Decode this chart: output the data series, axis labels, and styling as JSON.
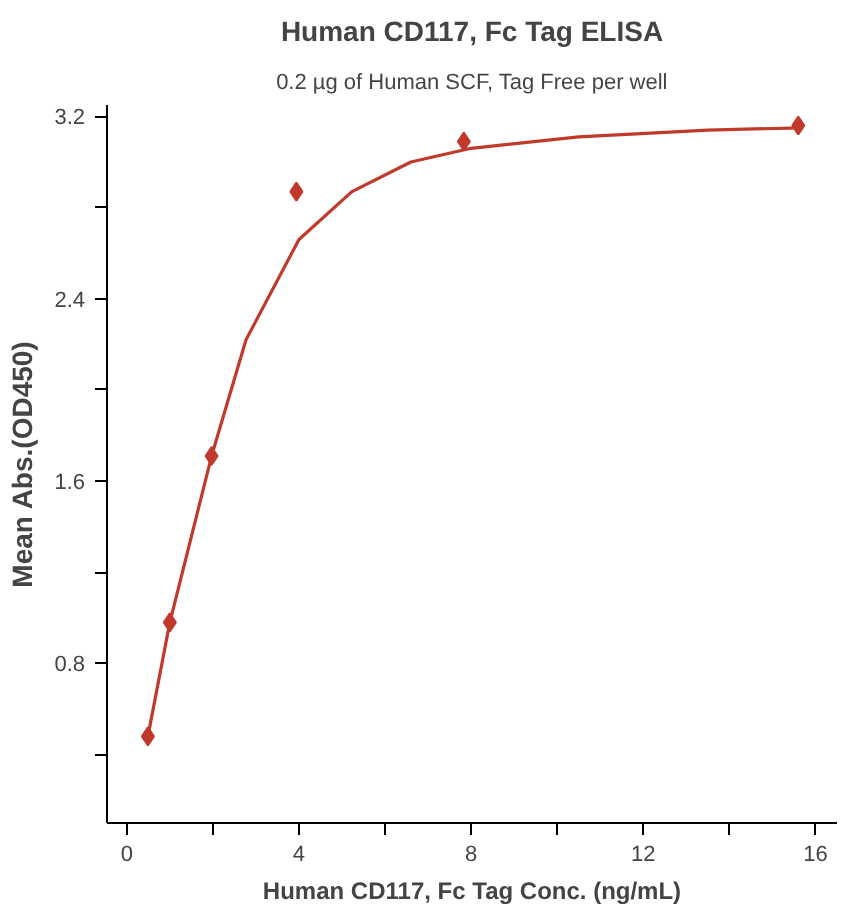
{
  "chart_data": {
    "type": "scatter",
    "title": "Human CD117, Fc Tag ELISA",
    "subtitle": "0.2 µg of Human SCF, Tag Free per well",
    "xlabel": "Human CD117, Fc Tag Conc. (ng/mL)",
    "ylabel": "Mean Abs.(OD450)",
    "marker": "diamond",
    "grid": false,
    "xlim": [
      -0.46,
      16.5
    ],
    "ylim": [
      0.1,
      3.25
    ],
    "xticks": [
      0,
      {
        "value": 2,
        "label": null
      },
      4,
      {
        "value": 6,
        "label": null
      },
      8,
      {
        "value": 10,
        "label": null
      },
      12,
      {
        "value": 14,
        "label": null
      },
      16
    ],
    "yticks": [
      {
        "value": 0.4,
        "label": null
      },
      0.8,
      {
        "value": 1.2,
        "label": null
      },
      1.6,
      {
        "value": 2.0,
        "label": null
      },
      2.4,
      {
        "value": 2.8,
        "label": null
      },
      3.2
    ],
    "series": [
      {
        "color": "#c0392b",
        "x": [
          0.49,
          1.0,
          1.97,
          3.94,
          7.83,
          15.6
        ],
        "values": [
          0.48,
          0.98,
          1.71,
          2.87,
          3.09,
          3.16
        ]
      },
      {
        "type": "line",
        "color": "#c0392b",
        "marker": "none",
        "line_style": "solid",
        "x": [
          0.49,
          1.0,
          1.97,
          2.77,
          4.0,
          5.23,
          6.6,
          8.0,
          10.5,
          13.5,
          15.7
        ],
        "values": [
          0.48,
          0.98,
          1.71,
          2.22,
          2.66,
          2.87,
          3.0,
          3.06,
          3.11,
          3.14,
          3.15
        ]
      }
    ]
  }
}
